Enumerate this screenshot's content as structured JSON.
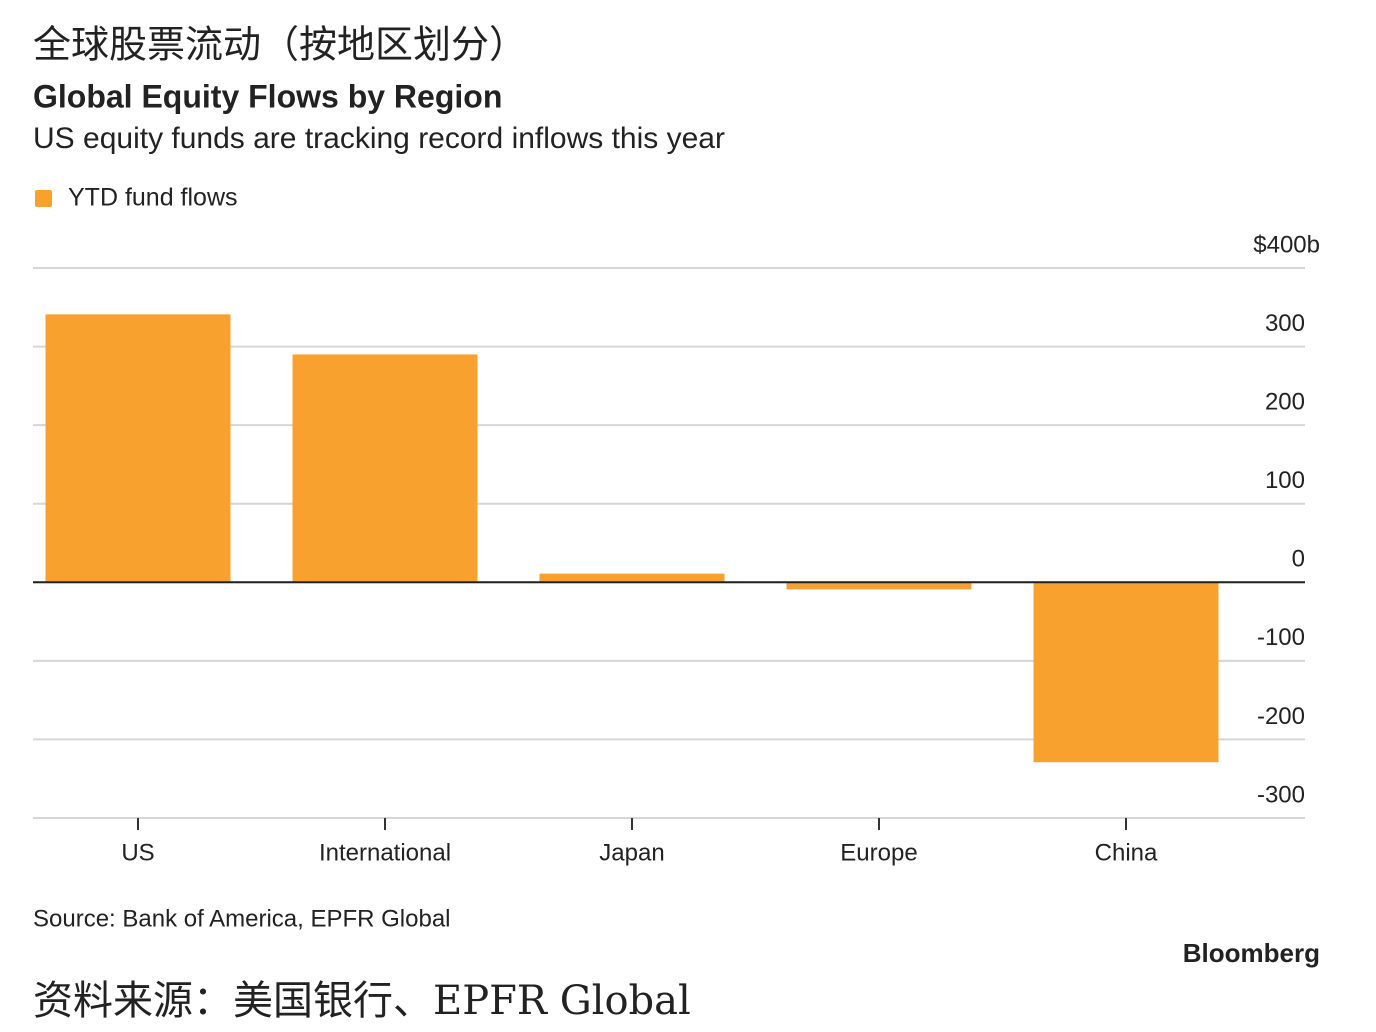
{
  "header": {
    "chinese_title": "全球股票流动（按地区划分）"
  },
  "chart_data": {
    "type": "bar",
    "title": "Global Equity Flows by Region",
    "subtitle": "US equity funds are tracking record inflows this year",
    "categories": [
      "US",
      "International",
      "Japan",
      "Europe",
      "China"
    ],
    "series": [
      {
        "name": "YTD fund flows",
        "color": "#f9a12e",
        "values": [
          341,
          290,
          11,
          -9,
          -229
        ]
      }
    ],
    "ylim": [
      -300,
      400
    ],
    "yticks": [
      -300,
      -200,
      -100,
      0,
      100,
      200,
      300,
      {
        "value": 400,
        "label": "$400b"
      }
    ],
    "grid": true,
    "source": "Source: Bank of America, EPFR Global",
    "credit": "Bloomberg"
  },
  "footer": {
    "chinese_caption": "资料来源：美国银行、EPFR Global"
  }
}
